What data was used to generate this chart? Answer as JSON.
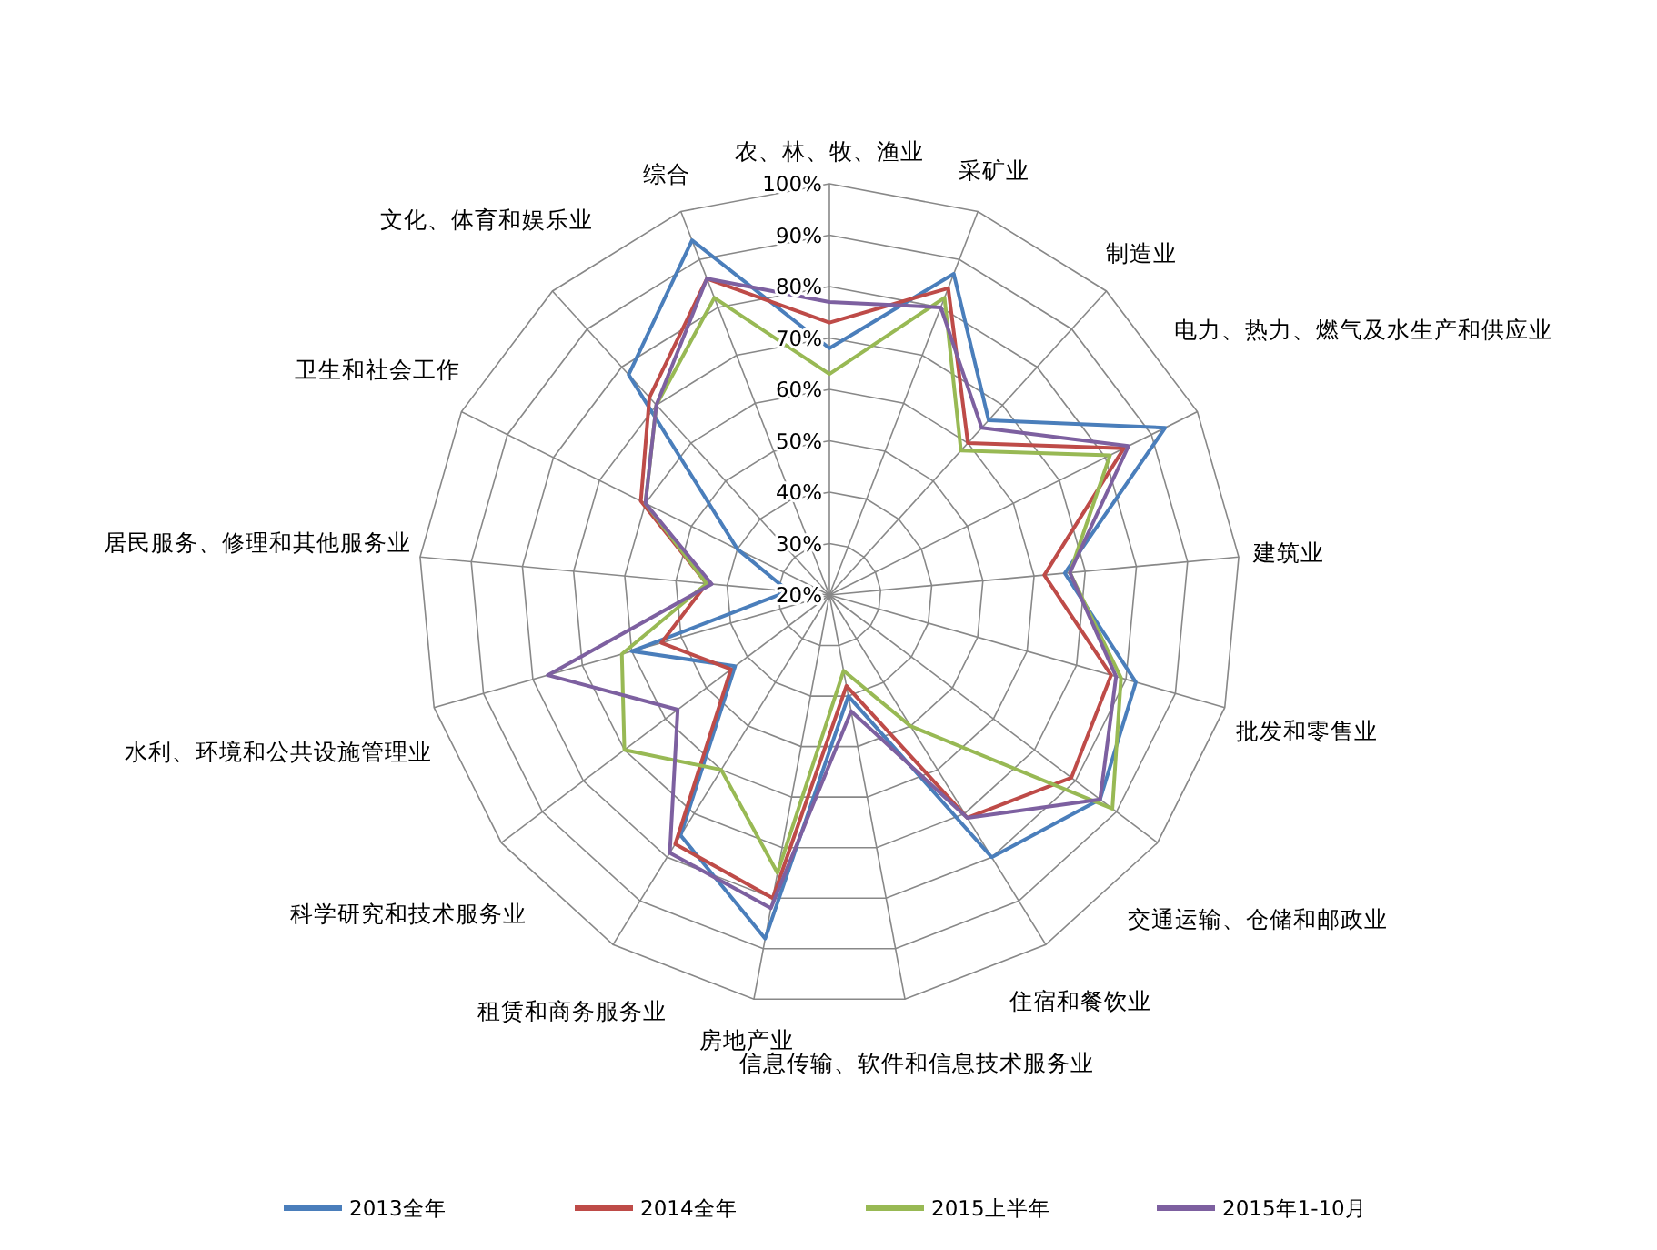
{
  "chart_data": {
    "type": "radar",
    "categories": [
      "农、林、牧、渔业",
      "采矿业",
      "制造业",
      "电力、热力、燃气及水生产和供应业",
      "建筑业",
      "批发和零售业",
      "交通运输、仓储和邮政业",
      "住宿和餐饮业",
      "信息传输、软件和信息技术服务业",
      "房地产业",
      "租赁和商务服务业",
      "科学研究和技术服务业",
      "水利、环境和公共设施管理业",
      "居民服务、修理和其他服务业",
      "卫生和社会工作",
      "文化、体育和娱乐业",
      "综合"
    ],
    "series": [
      {
        "name": "2013全年",
        "color": "#4a7ebb",
        "values": [
          68,
          87,
          66,
          93,
          66,
          82,
          86,
          80,
          40,
          88,
          75,
          43,
          60,
          28,
          40,
          78,
          94
        ]
      },
      {
        "name": "2014全年",
        "color": "#be4b48",
        "values": [
          73,
          84,
          60,
          84,
          62,
          77,
          79,
          71,
          38,
          80,
          77,
          44,
          54,
          44,
          61,
          72,
          86
        ]
      },
      {
        "name": "2015上半年",
        "color": "#98b954",
        "values": [
          63,
          82,
          58,
          81,
          67,
          79,
          89,
          50,
          35,
          75,
          60,
          70,
          62,
          44,
          60,
          70,
          82
        ]
      },
      {
        "name": "2015年1-10月",
        "color": "#7d60a0",
        "values": [
          77,
          80,
          64,
          85,
          67,
          78,
          86,
          71,
          43,
          82,
          79,
          57,
          77,
          43,
          60,
          70,
          86
        ]
      }
    ],
    "ylim": [
      20,
      100
    ],
    "yticks": [
      {
        "value": 20,
        "label": "20%"
      },
      {
        "value": 30,
        "label": "30%"
      },
      {
        "value": 40,
        "label": "40%"
      },
      {
        "value": 50,
        "label": "50%"
      },
      {
        "value": 60,
        "label": "60%"
      },
      {
        "value": 70,
        "label": "70%"
      },
      {
        "value": 80,
        "label": "80%"
      },
      {
        "value": 90,
        "label": "90%"
      },
      {
        "value": 100,
        "label": "100%"
      }
    ],
    "grid": true,
    "legend": "bottom",
    "line_style": "solid",
    "marker": "none"
  }
}
